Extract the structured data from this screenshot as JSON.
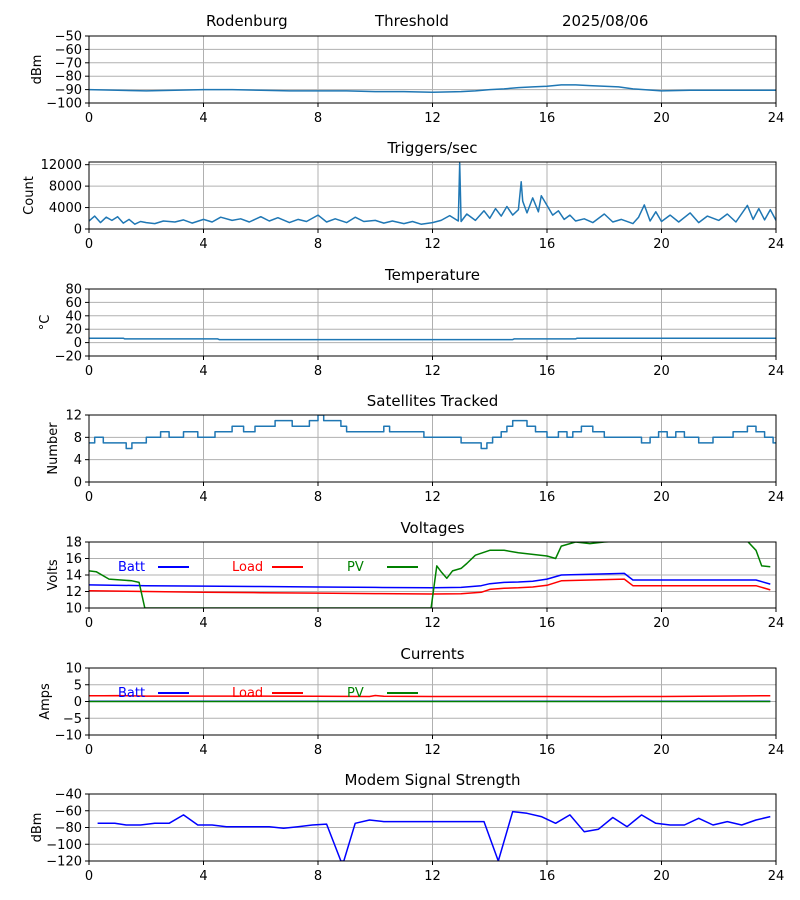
{
  "header": {
    "station": "Rodenburg",
    "mode": "Threshold",
    "date": "2025/08/06"
  },
  "colors": {
    "series_default": "#1f77b4",
    "batt": "#0000ff",
    "load": "#ff0000",
    "pv": "#008000",
    "modem": "#0000ff",
    "grid": "#b0b0b0"
  },
  "chart_data": [
    {
      "type": "line",
      "title": "",
      "xlabel": "",
      "ylabel": "dBm",
      "xlim": [
        0,
        24
      ],
      "ylim": [
        -100,
        -50
      ],
      "xticks": [
        0,
        4,
        8,
        12,
        16,
        20,
        24
      ],
      "yticks": [
        -100,
        -90,
        -80,
        -70,
        -60,
        -50
      ],
      "grid": true,
      "series": [
        {
          "color": "#1f77b4",
          "x": [
            0,
            1,
            2,
            3,
            4,
            5,
            6,
            7,
            8,
            9,
            10,
            11,
            12,
            13,
            13.5,
            14,
            14.5,
            15,
            15.5,
            16,
            16.5,
            17,
            17.5,
            18,
            18.5,
            19,
            20,
            21,
            22,
            23,
            24
          ],
          "values": [
            -90,
            -90.5,
            -91,
            -90.5,
            -90,
            -90,
            -90.5,
            -91,
            -91,
            -91,
            -91.5,
            -91.5,
            -92,
            -91.5,
            -91,
            -90,
            -89.5,
            -88.5,
            -88,
            -87.5,
            -86.5,
            -86.5,
            -87,
            -87.5,
            -88,
            -89.5,
            -91,
            -90.5,
            -90.5,
            -90.5,
            -90.5
          ]
        }
      ]
    },
    {
      "type": "line",
      "title": "Triggers/sec",
      "xlabel": "",
      "ylabel": "Count",
      "xlim": [
        0,
        24
      ],
      "ylim": [
        0,
        12500
      ],
      "xticks": [
        0,
        4,
        8,
        12,
        16,
        20,
        24
      ],
      "yticks": [
        0,
        4000,
        8000,
        12000
      ],
      "grid": true,
      "series": [
        {
          "color": "#1f77b4",
          "x": [
            0,
            0.2,
            0.4,
            0.6,
            0.8,
            1,
            1.2,
            1.4,
            1.6,
            1.8,
            2,
            2.3,
            2.6,
            3,
            3.3,
            3.6,
            4,
            4.3,
            4.6,
            5,
            5.3,
            5.6,
            6,
            6.3,
            6.6,
            7,
            7.3,
            7.6,
            8,
            8.3,
            8.6,
            9,
            9.3,
            9.6,
            10,
            10.3,
            10.6,
            11,
            11.3,
            11.6,
            12,
            12.3,
            12.6,
            12.9,
            12.95,
            13.0,
            13.2,
            13.5,
            13.8,
            14,
            14.2,
            14.4,
            14.6,
            14.8,
            15,
            15.1,
            15.15,
            15.3,
            15.5,
            15.7,
            15.8,
            16,
            16.2,
            16.4,
            16.6,
            16.8,
            17,
            17.3,
            17.6,
            18,
            18.3,
            18.6,
            19,
            19.2,
            19.4,
            19.6,
            19.8,
            20,
            20.3,
            20.6,
            21,
            21.3,
            21.6,
            22,
            22.3,
            22.6,
            23,
            23.2,
            23.4,
            23.6,
            23.8,
            24
          ],
          "values": [
            1500,
            2400,
            1200,
            2200,
            1600,
            2300,
            1100,
            1800,
            900,
            1400,
            1200,
            1000,
            1500,
            1300,
            1700,
            1100,
            1800,
            1300,
            2200,
            1600,
            1900,
            1300,
            2300,
            1500,
            2100,
            1200,
            1800,
            1400,
            2600,
            1300,
            1900,
            1200,
            2200,
            1400,
            1600,
            1100,
            1500,
            1000,
            1400,
            900,
            1200,
            1600,
            2500,
            1500,
            12300,
            1400,
            2800,
            1600,
            3400,
            2000,
            3800,
            2400,
            4200,
            2600,
            3600,
            8800,
            5200,
            3000,
            5800,
            3200,
            6200,
            4400,
            2600,
            3400,
            1800,
            2600,
            1500,
            1900,
            1200,
            2800,
            1300,
            1800,
            1000,
            2200,
            4500,
            1500,
            3200,
            1400,
            2600,
            1300,
            3000,
            1200,
            2400,
            1600,
            2800,
            1300,
            4400,
            1800,
            3800,
            1700,
            3600,
            1600
          ]
        }
      ]
    },
    {
      "type": "line",
      "title": "Temperature",
      "xlabel": "",
      "ylabel": "°C",
      "xlim": [
        0,
        24
      ],
      "ylim": [
        -20,
        80
      ],
      "xticks": [
        0,
        4,
        8,
        12,
        16,
        20,
        24
      ],
      "yticks": [
        -20,
        0,
        20,
        40,
        60,
        80
      ],
      "grid": true,
      "series": [
        {
          "color": "#1f77b4",
          "x": [
            0,
            1.2,
            1.25,
            4.5,
            4.55,
            14.8,
            14.85,
            17,
            17.05,
            24
          ],
          "values": [
            6.5,
            6.5,
            5.5,
            5.5,
            4.5,
            4.5,
            5.5,
            5.5,
            6.5,
            6.5
          ]
        }
      ]
    },
    {
      "type": "line",
      "title": "Satellites Tracked",
      "xlabel": "",
      "ylabel": "Number",
      "xlim": [
        0,
        24
      ],
      "ylim": [
        0,
        12
      ],
      "xticks": [
        0,
        4,
        8,
        12,
        16,
        20,
        24
      ],
      "yticks": [
        0,
        4,
        8,
        12
      ],
      "grid": true,
      "series": [
        {
          "color": "#1f77b4",
          "step": true,
          "x": [
            0,
            0.2,
            0.5,
            0.9,
            1.3,
            1.5,
            2.0,
            2.2,
            2.5,
            2.8,
            3.0,
            3.3,
            3.8,
            4.4,
            4.7,
            5.0,
            5.4,
            5.8,
            6.2,
            6.5,
            7.1,
            7.7,
            8.0,
            8.2,
            8.8,
            9.0,
            9.3,
            10.0,
            10.3,
            10.5,
            11.3,
            11.7,
            12.0,
            12.5,
            13.0,
            13.3,
            13.7,
            13.9,
            14.1,
            14.4,
            14.6,
            14.8,
            15.3,
            15.6,
            16.0,
            16.4,
            16.7,
            16.9,
            17.2,
            17.6,
            18.0,
            18.5,
            19.0,
            19.3,
            19.6,
            19.9,
            20.2,
            20.5,
            20.8,
            21.3,
            21.8,
            22.0,
            22.5,
            23.0,
            23.3,
            23.6,
            23.9,
            24
          ],
          "values": [
            7,
            8,
            7,
            7,
            6,
            7,
            8,
            8,
            9,
            8,
            8,
            9,
            8,
            9,
            9,
            10,
            9,
            10,
            10,
            11,
            10,
            11,
            12,
            11,
            10,
            9,
            9,
            9,
            10,
            9,
            9,
            8,
            8,
            8,
            7,
            7,
            6,
            7,
            8,
            9,
            10,
            11,
            10,
            9,
            8,
            9,
            8,
            9,
            10,
            9,
            8,
            8,
            8,
            7,
            8,
            9,
            8,
            9,
            8,
            7,
            8,
            8,
            9,
            10,
            9,
            8,
            7,
            7
          ]
        }
      ]
    },
    {
      "type": "line",
      "title": "Voltages",
      "xlabel": "",
      "ylabel": "Volts",
      "xlim": [
        0,
        24
      ],
      "ylim": [
        10,
        18
      ],
      "xticks": [
        0,
        4,
        8,
        12,
        16,
        20,
        24
      ],
      "yticks": [
        10,
        12,
        14,
        16,
        18
      ],
      "grid": true,
      "legend": "top-left, horizontal",
      "series": [
        {
          "name": "Batt",
          "color": "#0000ff",
          "x": [
            0,
            2,
            4,
            6,
            8,
            10,
            12,
            13,
            13.7,
            14,
            14.5,
            15,
            15.5,
            16,
            16.5,
            17,
            18.7,
            19.0,
            20,
            22,
            23.3,
            23.8
          ],
          "values": [
            12.8,
            12.7,
            12.65,
            12.6,
            12.55,
            12.5,
            12.45,
            12.5,
            12.7,
            12.95,
            13.1,
            13.15,
            13.25,
            13.5,
            14.0,
            14.05,
            14.2,
            13.4,
            13.4,
            13.4,
            13.4,
            12.9
          ]
        },
        {
          "name": "Load",
          "color": "#ff0000",
          "x": [
            0,
            2,
            4,
            6,
            8,
            10,
            12,
            13,
            13.7,
            14,
            14.5,
            15,
            15.5,
            16,
            16.5,
            17,
            18.7,
            19.0,
            20,
            22,
            23.3,
            23.8
          ],
          "values": [
            12.1,
            12.0,
            11.9,
            11.85,
            11.8,
            11.75,
            11.7,
            11.72,
            11.9,
            12.25,
            12.4,
            12.45,
            12.55,
            12.75,
            13.3,
            13.35,
            13.5,
            12.7,
            12.7,
            12.7,
            12.7,
            12.2
          ]
        },
        {
          "name": "PV",
          "color": "#008000",
          "x": [
            0,
            0.25,
            0.7,
            1.5,
            1.75,
            1.95,
            11.95,
            12.15,
            12.3,
            12.5,
            12.7,
            13.0,
            13.2,
            13.5,
            14.0,
            14.5,
            15.0,
            15.5,
            16.0,
            16.3,
            16.5,
            17.0,
            17.5,
            18.0,
            18.5,
            23.0,
            23.3,
            23.5,
            23.8
          ],
          "values": [
            14.5,
            14.4,
            13.5,
            13.3,
            13.1,
            10.0,
            10.0,
            15.1,
            14.4,
            13.6,
            14.5,
            14.8,
            15.4,
            16.4,
            17.0,
            17.0,
            16.7,
            16.5,
            16.3,
            16.0,
            17.5,
            18.0,
            17.8,
            18.0,
            18.1,
            18.1,
            17.0,
            15.1,
            15.0
          ]
        }
      ]
    },
    {
      "type": "line",
      "title": "Currents",
      "xlabel": "",
      "ylabel": "Amps",
      "xlim": [
        0,
        24
      ],
      "ylim": [
        -10,
        10
      ],
      "xticks": [
        0,
        4,
        8,
        12,
        16,
        20,
        24
      ],
      "yticks": [
        -10,
        -5,
        0,
        5,
        10
      ],
      "grid": true,
      "legend": "top-left, horizontal",
      "series": [
        {
          "name": "Batt",
          "color": "#0000ff",
          "x": [
            0,
            23.8
          ],
          "values": [
            0.05,
            0.05
          ]
        },
        {
          "name": "Load",
          "color": "#ff0000",
          "x": [
            0,
            0.5,
            1,
            2,
            4,
            6,
            8,
            9.8,
            10,
            10.3,
            12,
            14,
            16,
            18,
            20,
            22,
            23.5,
            23.8
          ],
          "values": [
            1.7,
            1.7,
            1.75,
            1.6,
            1.6,
            1.6,
            1.55,
            1.5,
            1.8,
            1.55,
            1.5,
            1.5,
            1.5,
            1.45,
            1.5,
            1.6,
            1.7,
            1.7
          ]
        },
        {
          "name": "PV",
          "color": "#008000",
          "x": [
            0,
            23.8
          ],
          "values": [
            0,
            0
          ]
        }
      ]
    },
    {
      "type": "line",
      "title": "Modem Signal Strength",
      "xlabel": "",
      "ylabel": "dBm",
      "xlim": [
        0,
        24
      ],
      "ylim": [
        -120,
        -40
      ],
      "xticks": [
        0,
        4,
        8,
        12,
        16,
        20,
        24
      ],
      "yticks": [
        -120,
        -100,
        -80,
        -60,
        -40
      ],
      "grid": true,
      "series": [
        {
          "color": "#0000ff",
          "x": [
            0.3,
            0.9,
            1.3,
            1.8,
            2.3,
            2.8,
            3.3,
            3.8,
            4.3,
            4.8,
            5.3,
            6.3,
            6.8,
            7.3,
            7.8,
            8.3,
            8.8,
            8.9,
            9.3,
            9.8,
            10.3,
            10.8,
            11.3,
            11.8,
            12.3,
            12.8,
            13.3,
            13.8,
            14.3,
            14.8,
            15.3,
            15.8,
            16.3,
            16.8,
            17.3,
            17.8,
            18.3,
            18.8,
            19.3,
            19.8,
            20.3,
            20.8,
            21.3,
            21.8,
            22.3,
            22.8,
            23.3,
            23.8
          ],
          "values": [
            -75,
            -75,
            -77,
            -77,
            -75,
            -75,
            -65,
            -77,
            -77,
            -79,
            -79,
            -79,
            -81,
            -79,
            -77,
            -76,
            -120,
            -120,
            -75,
            -71,
            -73,
            -73,
            -73,
            -73,
            -73,
            -73,
            -73,
            -73,
            -120,
            -61,
            -63,
            -67,
            -75,
            -65,
            -85,
            -82,
            -68,
            -79,
            -65,
            -75,
            -77,
            -77,
            -69,
            -77,
            -73,
            -77,
            -71,
            -67
          ]
        }
      ]
    }
  ]
}
